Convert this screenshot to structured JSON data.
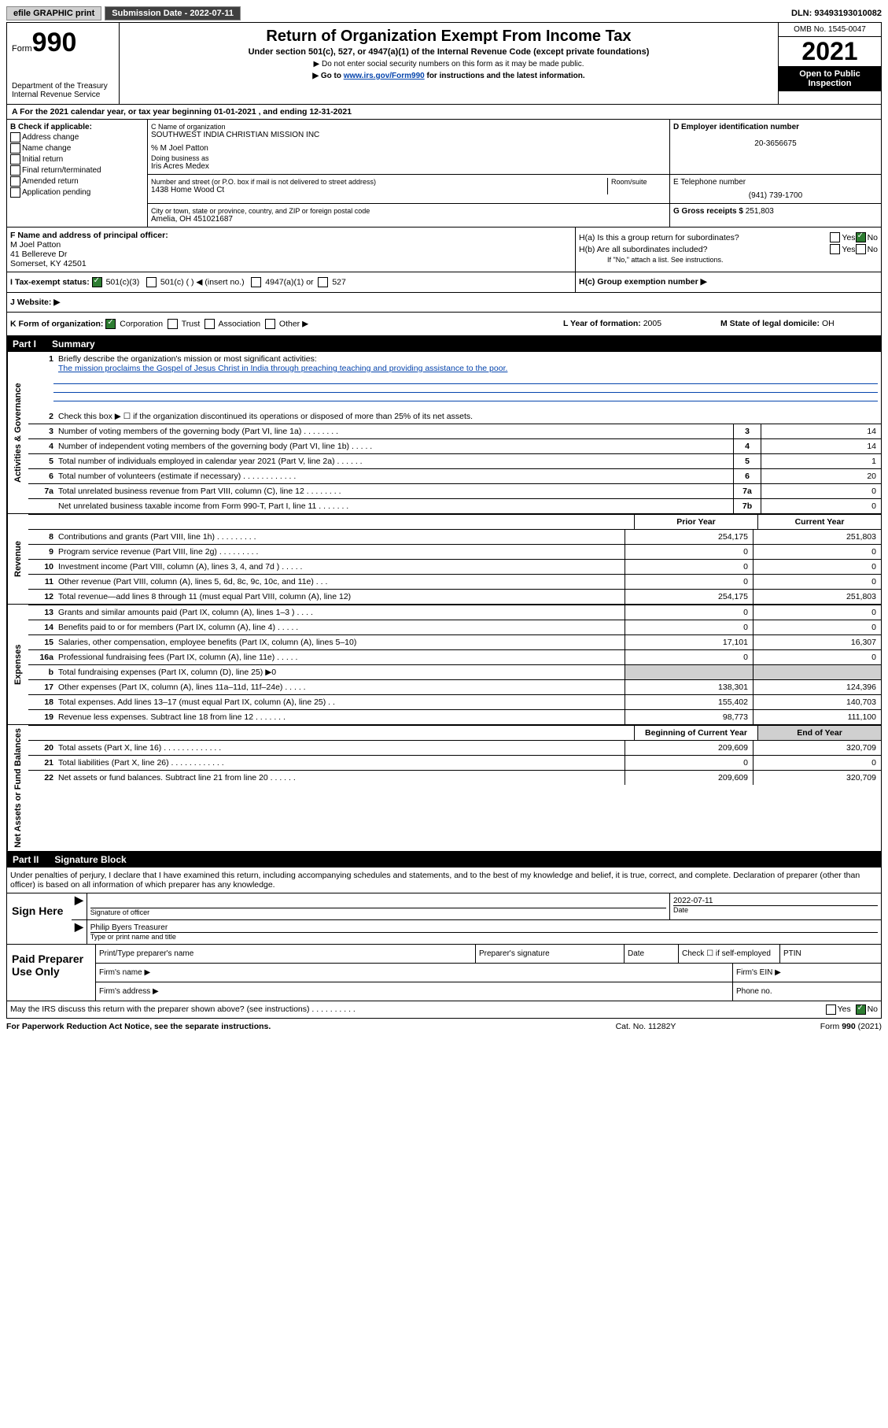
{
  "top": {
    "efile": "efile GRAPHIC print",
    "sub_label": "Submission Date - 2022-07-11",
    "dln": "DLN: 93493193010082"
  },
  "header": {
    "form_word": "Form",
    "form_num": "990",
    "dept": "Department of the Treasury",
    "irs": "Internal Revenue Service",
    "title": "Return of Organization Exempt From Income Tax",
    "sub": "Under section 501(c), 527, or 4947(a)(1) of the Internal Revenue Code (except private foundations)",
    "note1": "▶ Do not enter social security numbers on this form as it may be made public.",
    "note2_pre": "▶ Go to ",
    "note2_link": "www.irs.gov/Form990",
    "note2_post": " for instructions and the latest information.",
    "omb": "OMB No. 1545-0047",
    "year": "2021",
    "open": "Open to Public Inspection"
  },
  "row_a": {
    "text": "A For the 2021 calendar year, or tax year beginning 01-01-2021   , and ending 12-31-2021"
  },
  "col_b": {
    "title": "B Check if applicable:",
    "o1": "Address change",
    "o2": "Name change",
    "o3": "Initial return",
    "o4": "Final return/terminated",
    "o5": "Amended return",
    "o6": "Application pending"
  },
  "col_c": {
    "name_label": "C Name of organization",
    "name": "SOUTHWEST INDIA CHRISTIAN MISSION INC",
    "care": "% M Joel Patton",
    "dba_label": "Doing business as",
    "dba": "Iris Acres Medex",
    "addr_label": "Number and street (or P.O. box if mail is not delivered to street address)",
    "addr": "1438 Home Wood Ct",
    "room_label": "Room/suite",
    "city_label": "City or town, state or province, country, and ZIP or foreign postal code",
    "city": "Amelia, OH  451021687"
  },
  "col_d": {
    "label": "D Employer identification number",
    "val": "20-3656675"
  },
  "col_e": {
    "label": "E Telephone number",
    "val": "(941) 739-1700"
  },
  "col_g": {
    "label": "G Gross receipts $",
    "val": "251,803"
  },
  "col_f": {
    "label": "F  Name and address of principal officer:",
    "l1": "M Joel Patton",
    "l2": "41 Bellereve Dr",
    "l3": "Somerset, KY  42501"
  },
  "col_h": {
    "ha": "H(a)  Is this a group return for subordinates?",
    "hb": "H(b)  Are all subordinates included?",
    "hb_note": "If \"No,\" attach a list. See instructions.",
    "hc": "H(c)  Group exemption number ▶",
    "yes": "Yes",
    "no": "No"
  },
  "row_i": {
    "label": "I    Tax-exempt status:",
    "o1": "501(c)(3)",
    "o2": "501(c) (  ) ◀ (insert no.)",
    "o3": "4947(a)(1) or",
    "o4": "527"
  },
  "row_j": {
    "label": "J   Website: ▶"
  },
  "row_k": {
    "label": "K Form of organization:",
    "o1": "Corporation",
    "o2": "Trust",
    "o3": "Association",
    "o4": "Other ▶",
    "l_label": "L Year of formation:",
    "l_val": "2005",
    "m_label": "M State of legal domicile:",
    "m_val": "OH"
  },
  "part1": {
    "pn": "Part I",
    "pt": "Summary"
  },
  "vtabs": {
    "ag": "Activities & Governance",
    "rev": "Revenue",
    "exp": "Expenses",
    "na": "Net Assets or Fund Balances"
  },
  "s1": {
    "num": "1",
    "txt": "Briefly describe the organization's mission or most significant activities:",
    "mission": "The mission proclaims the Gospel of Jesus Christ in India through preaching teaching and providing assistance to the poor."
  },
  "s2": {
    "num": "2",
    "txt": "Check this box ▶ ☐  if the organization discontinued its operations or disposed of more than 25% of its net assets."
  },
  "lines_ag": [
    {
      "num": "3",
      "txt": "Number of voting members of the governing body (Part VI, line 1a)   .   .   .   .   .   .   .   .",
      "box": "3",
      "val": "14"
    },
    {
      "num": "4",
      "txt": "Number of independent voting members of the governing body (Part VI, line 1b)   .   .   .   .   .",
      "box": "4",
      "val": "14"
    },
    {
      "num": "5",
      "txt": "Total number of individuals employed in calendar year 2021 (Part V, line 2a)   .   .   .   .   .   .",
      "box": "5",
      "val": "1"
    },
    {
      "num": "6",
      "txt": "Total number of volunteers (estimate if necessary)   .   .   .   .   .   .   .   .   .   .   .   .",
      "box": "6",
      "val": "20"
    },
    {
      "num": "7a",
      "txt": "Total unrelated business revenue from Part VIII, column (C), line 12   .   .   .   .   .   .   .   .",
      "box": "7a",
      "val": "0"
    },
    {
      "num": "",
      "txt": "Net unrelated business taxable income from Form 990-T, Part I, line 11   .   .   .   .   .   .   .",
      "box": "7b",
      "val": "0"
    }
  ],
  "col_headers": {
    "prior": "Prior Year",
    "curr": "Current Year",
    "beg": "Beginning of Current Year",
    "end": "End of Year"
  },
  "lines_rev": [
    {
      "num": "8",
      "txt": "Contributions and grants (Part VIII, line 1h)   .   .   .   .   .   .   .   .   .",
      "c1": "254,175",
      "c2": "251,803"
    },
    {
      "num": "9",
      "txt": "Program service revenue (Part VIII, line 2g)   .   .   .   .   .   .   .   .   .",
      "c1": "0",
      "c2": "0"
    },
    {
      "num": "10",
      "txt": "Investment income (Part VIII, column (A), lines 3, 4, and 7d )   .   .   .   .   .",
      "c1": "0",
      "c2": "0"
    },
    {
      "num": "11",
      "txt": "Other revenue (Part VIII, column (A), lines 5, 6d, 8c, 9c, 10c, and 11e)   .   .   .",
      "c1": "0",
      "c2": "0"
    },
    {
      "num": "12",
      "txt": "Total revenue—add lines 8 through 11 (must equal Part VIII, column (A), line 12)",
      "c1": "254,175",
      "c2": "251,803"
    }
  ],
  "lines_exp": [
    {
      "num": "13",
      "txt": "Grants and similar amounts paid (Part IX, column (A), lines 1–3 )   .   .   .   .",
      "c1": "0",
      "c2": "0"
    },
    {
      "num": "14",
      "txt": "Benefits paid to or for members (Part IX, column (A), line 4)   .   .   .   .   .",
      "c1": "0",
      "c2": "0"
    },
    {
      "num": "15",
      "txt": "Salaries, other compensation, employee benefits (Part IX, column (A), lines 5–10)",
      "c1": "17,101",
      "c2": "16,307"
    },
    {
      "num": "16a",
      "txt": "Professional fundraising fees (Part IX, column (A), line 11e)   .   .   .   .   .",
      "c1": "0",
      "c2": "0"
    },
    {
      "num": "b",
      "txt": "Total fundraising expenses (Part IX, column (D), line 25) ▶0",
      "c1": "shade",
      "c2": "shade"
    },
    {
      "num": "17",
      "txt": "Other expenses (Part IX, column (A), lines 11a–11d, 11f–24e)   .   .   .   .   .",
      "c1": "138,301",
      "c2": "124,396"
    },
    {
      "num": "18",
      "txt": "Total expenses. Add lines 13–17 (must equal Part IX, column (A), line 25)   .   .",
      "c1": "155,402",
      "c2": "140,703"
    },
    {
      "num": "19",
      "txt": "Revenue less expenses. Subtract line 18 from line 12   .   .   .   .   .   .   .",
      "c1": "98,773",
      "c2": "111,100"
    }
  ],
  "lines_na": [
    {
      "num": "20",
      "txt": "Total assets (Part X, line 16)   .   .   .   .   .   .   .   .   .   .   .   .   .",
      "c1": "209,609",
      "c2": "320,709"
    },
    {
      "num": "21",
      "txt": "Total liabilities (Part X, line 26)   .   .   .   .   .   .   .   .   .   .   .   .",
      "c1": "0",
      "c2": "0"
    },
    {
      "num": "22",
      "txt": "Net assets or fund balances. Subtract line 21 from line 20   .   .   .   .   .   .",
      "c1": "209,609",
      "c2": "320,709"
    }
  ],
  "part2": {
    "pn": "Part II",
    "pt": "Signature Block"
  },
  "sig": {
    "disclaimer": "Under penalties of perjury, I declare that I have examined this return, including accompanying schedules and statements, and to the best of my knowledge and belief, it is true, correct, and complete. Declaration of preparer (other than officer) is based on all information of which preparer has any knowledge.",
    "sign_here": "Sign Here",
    "sig_label": "Signature of officer",
    "date_label": "Date",
    "date_val": "2022-07-11",
    "name": "Philip Byers  Treasurer",
    "name_label": "Type or print name and title"
  },
  "prep": {
    "title": "Paid Preparer Use Only",
    "c1": "Print/Type preparer's name",
    "c2": "Preparer's signature",
    "c3": "Date",
    "c4": "Check ☐ if self-employed",
    "c5": "PTIN",
    "r2a": "Firm's name   ▶",
    "r2b": "Firm's EIN ▶",
    "r3a": "Firm's address ▶",
    "r3b": "Phone no."
  },
  "last": {
    "txt": "May the IRS discuss this return with the preparer shown above? (see instructions)   .   .   .   .   .   .   .   .   .   .",
    "yes": "Yes",
    "no": "No"
  },
  "footer": {
    "f1": "For Paperwork Reduction Act Notice, see the separate instructions.",
    "f2": "Cat. No. 11282Y",
    "f3": "Form 990 (2021)"
  }
}
